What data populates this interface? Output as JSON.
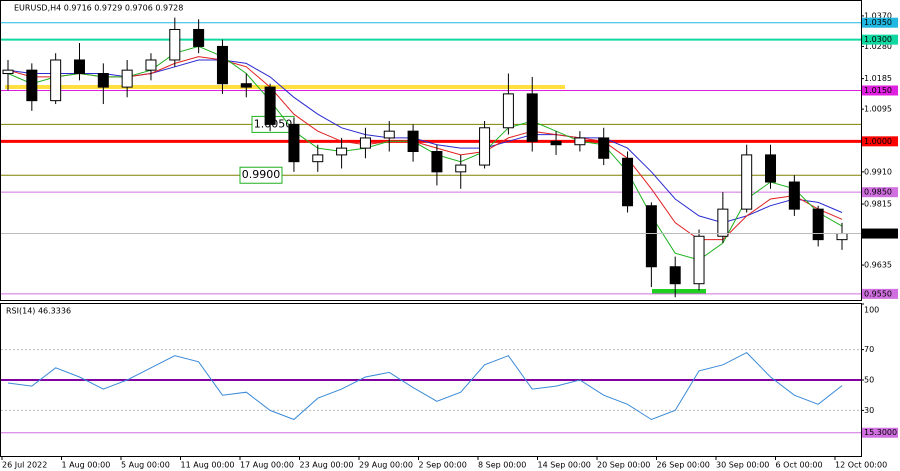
{
  "chart_data": [
    {
      "type": "candlestick",
      "title": "EURUSD,H4  0.9716 0.9729 0.9706 0.9728",
      "ylim": [
        0.9529,
        1.0414
      ],
      "yticks": [
        {
          "value": 1.037,
          "label": "1.0370"
        },
        {
          "value": 1.028,
          "label": "1.0280"
        },
        {
          "value": 1.0185,
          "label": "1.0185"
        },
        {
          "value": 1.0095,
          "label": "1.0095"
        },
        {
          "value": 0.991,
          "label": "0.9910"
        },
        {
          "value": 0.9815,
          "label": "0.9815"
        },
        {
          "value": 0.9635,
          "label": "0.9635"
        }
      ],
      "open": [
        1.02,
        1.021,
        1.012,
        1.024,
        1.02,
        1.016,
        1.021,
        1.024,
        1.033,
        1.028,
        1.017,
        1.016,
        1.005,
        0.994,
        0.996,
        0.998,
        1.001,
        1.003,
        0.997,
        0.991,
        0.993,
        1.004,
        1.014,
        1.0,
        0.999,
        1.001,
        0.995,
        0.981,
        0.963,
        0.958,
        0.972,
        0.98,
        0.996,
        0.988,
        0.98,
        0.971
      ],
      "high": [
        1.024,
        1.023,
        1.026,
        1.029,
        1.023,
        1.024,
        1.026,
        1.0365,
        1.036,
        1.03,
        1.02,
        1.017,
        1.007,
        0.999,
        1.001,
        1.004,
        1.006,
        1.005,
        0.999,
        0.996,
        1.006,
        1.02,
        1.019,
        1.003,
        1.003,
        1.004,
        0.997,
        0.982,
        0.966,
        0.974,
        0.985,
        0.999,
        0.999,
        0.99,
        0.981,
        0.976
      ],
      "low": [
        1.015,
        1.009,
        1.011,
        1.018,
        1.011,
        1.013,
        1.018,
        1.022,
        1.026,
        1.014,
        1.013,
        1.003,
        0.991,
        0.991,
        0.992,
        0.995,
        0.997,
        0.994,
        0.987,
        0.986,
        0.992,
        1.002,
        0.997,
        0.996,
        0.997,
        0.993,
        0.979,
        0.957,
        0.954,
        0.956,
        0.97,
        0.979,
        0.986,
        0.978,
        0.969,
        0.968
      ],
      "close": [
        1.021,
        1.012,
        1.024,
        1.02,
        1.016,
        1.021,
        1.024,
        1.033,
        1.028,
        1.017,
        1.016,
        1.005,
        0.994,
        0.996,
        0.998,
        1.001,
        1.003,
        0.997,
        0.991,
        0.993,
        1.004,
        1.014,
        1.0,
        0.999,
        1.001,
        0.995,
        0.981,
        0.963,
        0.958,
        0.972,
        0.98,
        0.996,
        0.988,
        0.98,
        0.971,
        0.9728
      ],
      "series": [
        {
          "color": "#2a2ad0",
          "values": [
            1.021,
            1.02,
            1.02,
            1.02,
            1.02,
            1.019,
            1.02,
            1.022,
            1.024,
            1.024,
            1.023,
            1.019,
            1.013,
            1.008,
            1.004,
            1.002,
            1.001,
            1.001,
            0.999,
            0.998,
            0.998,
            1.0,
            1.002,
            1.002,
            1.001,
            1.001,
            0.998,
            0.991,
            0.983,
            0.978,
            0.976,
            0.978,
            0.981,
            0.983,
            0.982,
            0.979
          ]
        },
        {
          "color": "#e02020",
          "values": [
            1.021,
            1.019,
            1.019,
            1.02,
            1.019,
            1.019,
            1.02,
            1.023,
            1.025,
            1.024,
            1.022,
            1.016,
            1.008,
            1.003,
            1.0,
            0.999,
            1.0,
            1.0,
            0.998,
            0.996,
            0.997,
            1.001,
            1.003,
            1.002,
            1.001,
            1.0,
            0.995,
            0.986,
            0.976,
            0.971,
            0.971,
            0.978,
            0.983,
            0.984,
            0.98,
            0.977
          ]
        },
        {
          "color": "#20b020",
          "values": [
            1.02,
            1.017,
            1.019,
            1.02,
            1.019,
            1.019,
            1.021,
            1.026,
            1.028,
            1.025,
            1.02,
            1.012,
            1.003,
            0.998,
            0.997,
            0.998,
            1.0,
            1.0,
            0.996,
            0.994,
            0.997,
            1.004,
            1.006,
            1.003,
            1.0,
            0.999,
            0.991,
            0.978,
            0.967,
            0.965,
            0.97,
            0.983,
            0.988,
            0.986,
            0.979,
            0.975
          ]
        }
      ],
      "levels": [
        {
          "value": 1.035,
          "label": "1.0350",
          "color": "#20b8e0",
          "width": 1
        },
        {
          "value": 1.03,
          "label": "1.0300",
          "color": "#10d8a0",
          "width": 2
        },
        {
          "value": 1.015,
          "label": "1.0150",
          "color": "#e020e0",
          "width": 1
        },
        {
          "value": 1.0,
          "label": "1.0000",
          "color": "#ff0000",
          "width": 3
        },
        {
          "value": 0.985,
          "label": "0.9850",
          "color": "#d070e0",
          "width": 1
        },
        {
          "value": 0.955,
          "label": "0.9550",
          "color": "#d070e0",
          "width": 1
        }
      ],
      "annotations": [
        {
          "value": 1.005,
          "label": "1.0050",
          "color": "#808000"
        },
        {
          "value": 0.99,
          "label": "0.9900",
          "color": "#808000"
        }
      ],
      "last": {
        "value": 0.9728,
        "label": "0.9728"
      }
    },
    {
      "type": "line",
      "title": "RSI(14) 46.3336",
      "ylim": [
        0,
        100
      ],
      "yticks": [
        100,
        70,
        50,
        30
      ],
      "values": [
        48,
        46,
        58,
        52,
        44,
        50,
        58,
        66,
        62,
        40,
        42,
        30,
        24,
        38,
        44,
        52,
        55,
        45,
        36,
        42,
        60,
        66,
        44,
        46,
        50,
        40,
        34,
        24,
        30,
        56,
        60,
        68,
        52,
        40,
        34,
        46.3336
      ],
      "color": "#3a8ad8",
      "levels": [
        {
          "value": 50,
          "color": "#8000a0",
          "width": 2
        },
        {
          "value": 15.3,
          "label": "15.3000",
          "color": "#d070e0",
          "width": 1
        }
      ],
      "x_labels": [
        "26 Jul 2022",
        "1 Aug 00:00",
        "5 Aug 00:00",
        "11 Aug 00:00",
        "17 Aug 00:00",
        "23 Aug 00:00",
        "29 Aug 00:00",
        "2 Sep 00:00",
        "8 Sep 00:00",
        "14 Sep 00:00",
        "20 Sep 00:00",
        "26 Sep 00:00",
        "30 Sep 00:00",
        "6 Oct 00:00",
        "12 Oct 00:00"
      ]
    }
  ]
}
